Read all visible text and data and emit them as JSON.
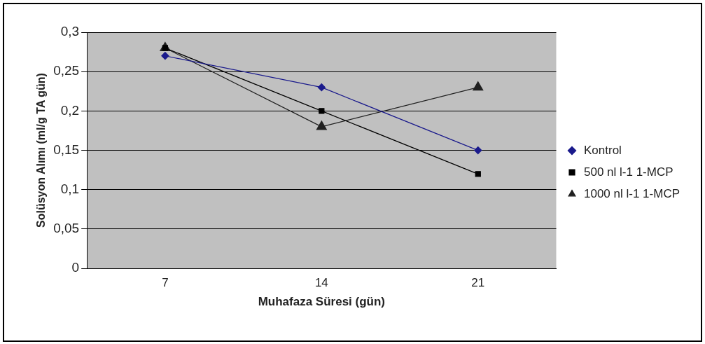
{
  "chart_data": {
    "type": "line",
    "xlabel": "Muhafaza Süresi (gün)",
    "ylabel": "Solüsyon Alımı (ml/g TA gün)",
    "categories": [
      "7",
      "14",
      "21"
    ],
    "series": [
      {
        "name": "Kontrol",
        "color": "#1a1a8c",
        "values": [
          0.27,
          0.23,
          0.15
        ],
        "marker": "diamond"
      },
      {
        "name": "500 nl l-1 1-MCP",
        "color": "#000000",
        "values": [
          0.28,
          0.2,
          0.12
        ],
        "marker": "square"
      },
      {
        "name": "1000 nl l-1 1-MCP",
        "color": "#202020",
        "values": [
          0.28,
          0.18,
          0.23
        ],
        "marker": "triangle"
      }
    ],
    "ylim": [
      0,
      0.3
    ],
    "yticks": [
      {
        "value": 0,
        "label": "0"
      },
      {
        "value": 0.05,
        "label": "0,05"
      },
      {
        "value": 0.1,
        "label": "0,1"
      },
      {
        "value": 0.15,
        "label": "0,15"
      },
      {
        "value": 0.2,
        "label": "0,2"
      },
      {
        "value": 0.25,
        "label": "0,25"
      },
      {
        "value": 0.3,
        "label": "0,3"
      }
    ],
    "grid": "y",
    "legend": "right",
    "line_style": "solid"
  }
}
